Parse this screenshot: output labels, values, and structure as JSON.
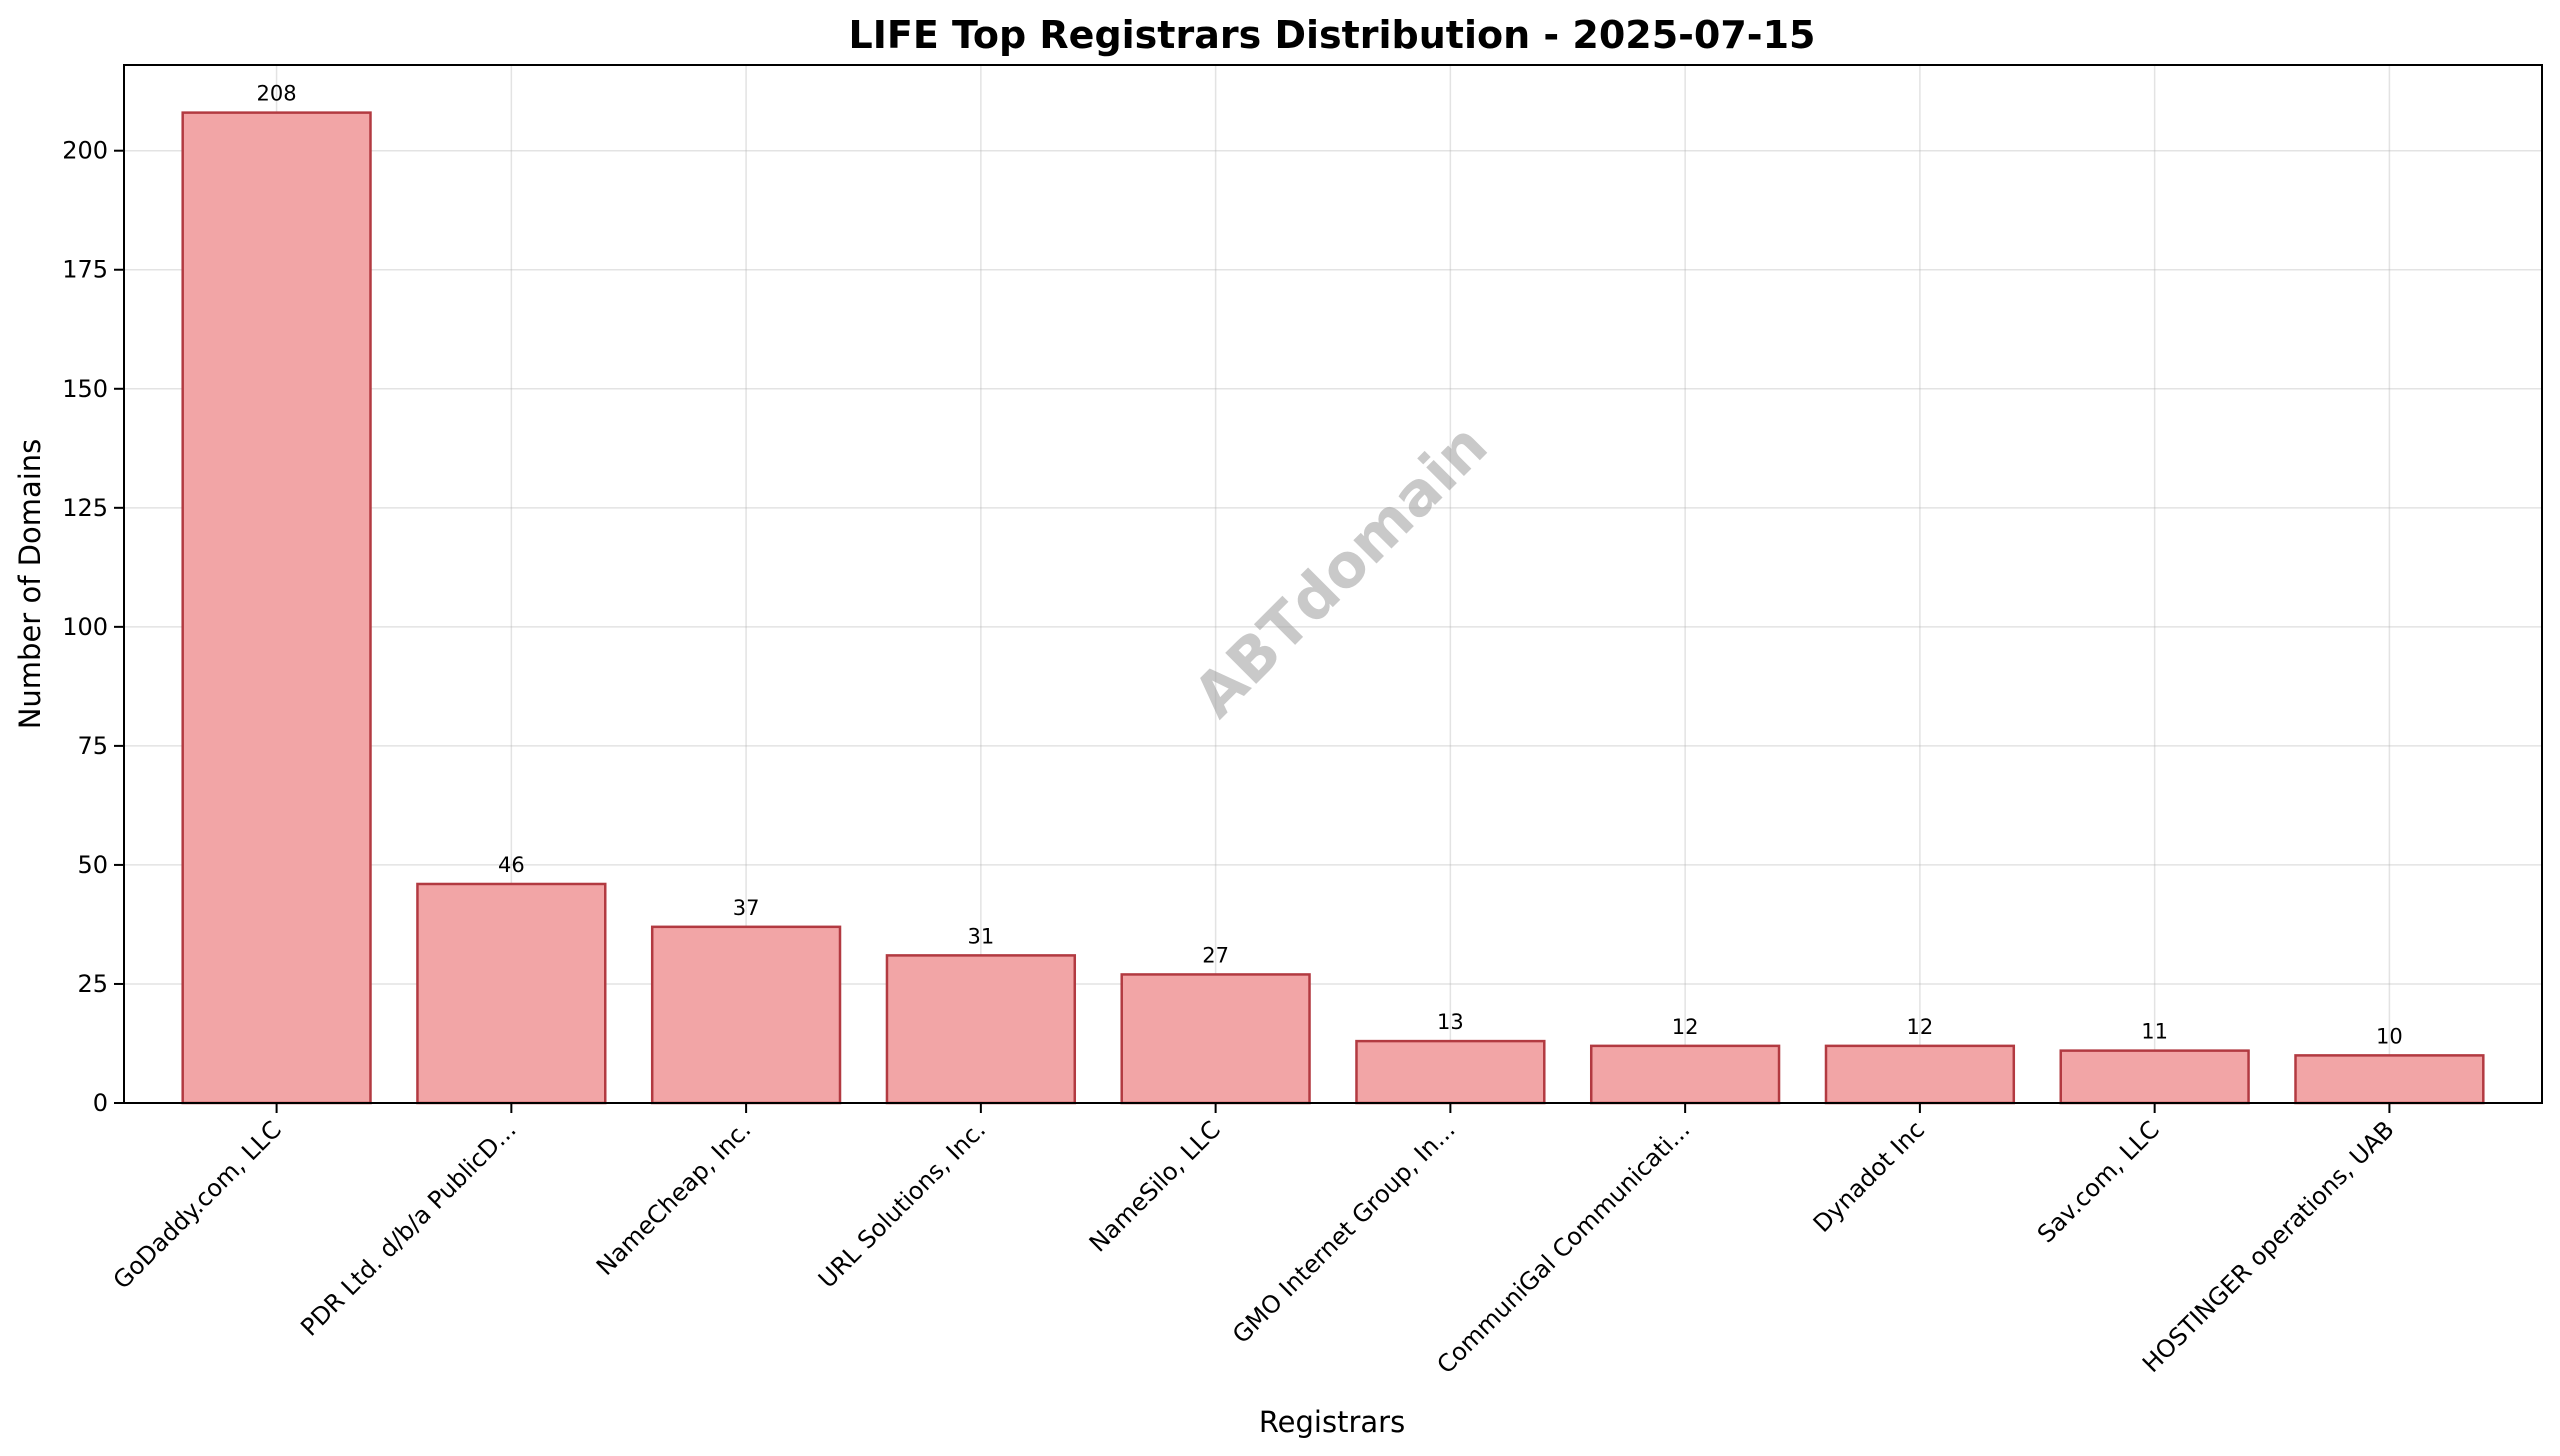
{
  "chart_data": {
    "type": "bar",
    "title": "LIFE Top Registrars Distribution - 2025-07-15",
    "xlabel": "Registrars",
    "ylabel": "Number of Domains",
    "categories": [
      "GoDaddy.com, LLC",
      "PDR Ltd. d/b/a PublicD...",
      "NameCheap, Inc.",
      "URL Solutions, Inc.",
      "NameSilo, LLC",
      "GMO Internet Group, In...",
      "CommuniGal Communicati...",
      "Dynadot Inc",
      "Sav.com, LLC",
      "HOSTINGER operations, UAB"
    ],
    "values": [
      208,
      46,
      37,
      31,
      27,
      13,
      12,
      12,
      11,
      10
    ],
    "ylim": [
      0,
      218
    ],
    "yticks": [
      0,
      25,
      50,
      75,
      100,
      125,
      150,
      175,
      200
    ],
    "grid": true,
    "bar_color": "#f2a5a6",
    "bar_edge_color": "#b23a41",
    "watermark": "ABTdomain"
  }
}
